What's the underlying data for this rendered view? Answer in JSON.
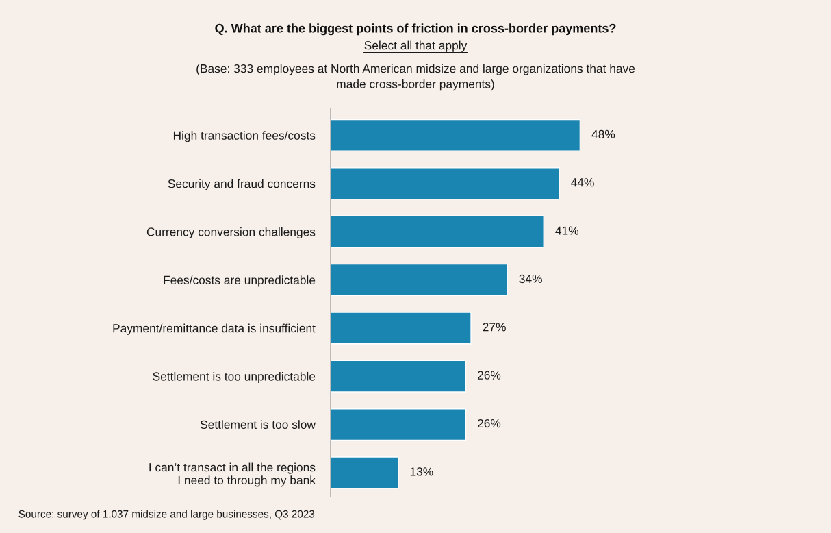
{
  "chart_data": {
    "type": "bar",
    "orientation": "horizontal",
    "title": "Q. What are the biggest points of friction in cross-border payments?",
    "subtitle": "Select all that apply",
    "annotations": [
      "(Base: 333 employees at North American midsize and large organizations that have\nmade cross-border payments)",
      "Source: survey of 1,037 midsize and large businesses, Q3 2023"
    ],
    "categories": [
      "High transaction fees/costs",
      "Security and fraud concerns",
      "Currency conversion challenges",
      "Fees/costs are unpredictable",
      "Payment/remittance data is insufficient",
      "Settlement is too unpredictable",
      "Settlement is too slow",
      "I can’t transact in all the regions\nI need to through my bank"
    ],
    "values": [
      48,
      44,
      41,
      34,
      27,
      26,
      26,
      13
    ],
    "value_labels": [
      "48%",
      "44%",
      "41%",
      "34%",
      "27%",
      "26%",
      "26%",
      "13%"
    ],
    "color": "#1b85b1",
    "tick_labels": "y"
  }
}
